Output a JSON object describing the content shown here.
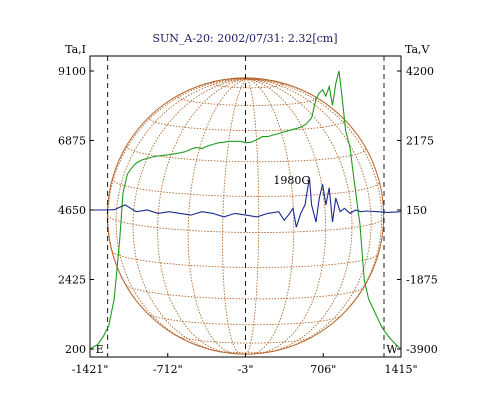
{
  "chart_data": {
    "type": "line",
    "title": "SUN_A-20: 2002/07/31: 2.32[cm]",
    "left_axis": {
      "label": "Ta,I",
      "ticks": [
        "9100",
        "6875",
        "4650",
        "2425",
        "200"
      ],
      "range": [
        200,
        9100
      ]
    },
    "right_axis": {
      "label": "Ta,V",
      "ticks": [
        "4200",
        "2175",
        "150",
        "-1875",
        "-3900"
      ],
      "range": [
        -3900,
        4200
      ]
    },
    "x_axis": {
      "ticks": [
        "-1421\"",
        "-712\"",
        "-3\"",
        "706\"",
        "1415\""
      ],
      "range": [
        -1421,
        1415
      ]
    },
    "markers": [
      {
        "label": "E",
        "x": -1260
      },
      {
        "label": "",
        "x": -3
      },
      {
        "label": "W",
        "x": 1260
      }
    ],
    "annotations": [
      {
        "text": "1980G",
        "x": 620,
        "y_axis": "left",
        "y": 5220
      }
    ],
    "solar_disk": {
      "center_x": -3,
      "radius_arcsec": 1260,
      "grid": "heliographic",
      "color": "#b5652b"
    },
    "series": [
      {
        "axis": "left",
        "color": "#1e9c1e",
        "x": [
          -1421,
          -1350,
          -1300,
          -1250,
          -1200,
          -1150,
          -1120,
          -1080,
          -1040,
          -1000,
          -950,
          -900,
          -850,
          -800,
          -750,
          -700,
          -650,
          -600,
          -550,
          -500,
          -450,
          -400,
          -350,
          -300,
          -250,
          -200,
          -150,
          -100,
          -50,
          0,
          50,
          100,
          150,
          200,
          250,
          300,
          350,
          400,
          450,
          500,
          550,
          600,
          640,
          670,
          700,
          730,
          760,
          790,
          820,
          850,
          880,
          910,
          950,
          980,
          1010,
          1040,
          1080,
          1120,
          1160,
          1200,
          1240,
          1270,
          1300,
          1340,
          1380,
          1415
        ],
        "y": [
          200,
          350,
          600,
          950,
          1800,
          3700,
          5200,
          5800,
          6000,
          6150,
          6250,
          6300,
          6350,
          6380,
          6400,
          6420,
          6450,
          6480,
          6520,
          6600,
          6650,
          6620,
          6700,
          6750,
          6800,
          6820,
          6850,
          6850,
          6850,
          6800,
          6820,
          6900,
          7000,
          7000,
          7050,
          7100,
          7150,
          7200,
          7250,
          7300,
          7400,
          7600,
          8200,
          8400,
          8500,
          8300,
          8600,
          8000,
          8700,
          9100,
          8200,
          7200,
          6650,
          5800,
          5000,
          4200,
          2400,
          1800,
          1500,
          1200,
          900,
          750,
          600,
          450,
          300,
          200
        ]
      },
      {
        "axis": "right",
        "color": "#1a2a8c",
        "x": [
          -1421,
          -1300,
          -1200,
          -1100,
          -1000,
          -900,
          -800,
          -700,
          -600,
          -500,
          -400,
          -300,
          -200,
          -100,
          0,
          100,
          200,
          300,
          350,
          400,
          430,
          460,
          500,
          540,
          580,
          600,
          640,
          670,
          700,
          730,
          760,
          790,
          820,
          860,
          900,
          950,
          1000,
          1050,
          1100,
          1200,
          1300,
          1415
        ],
        "y": [
          150,
          150,
          160,
          300,
          100,
          150,
          50,
          100,
          50,
          0,
          100,
          50,
          -50,
          50,
          0,
          -50,
          50,
          100,
          -150,
          50,
          200,
          -350,
          50,
          300,
          1100,
          300,
          -200,
          500,
          900,
          300,
          800,
          -200,
          500,
          100,
          200,
          50,
          150,
          100,
          120,
          100,
          80,
          100
        ]
      }
    ]
  }
}
